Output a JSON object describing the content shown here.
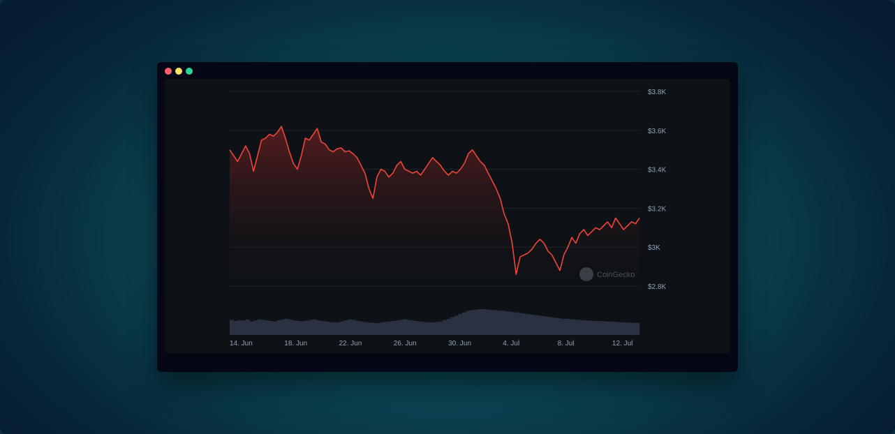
{
  "window": {
    "controls": [
      "close",
      "minimize",
      "maximize"
    ]
  },
  "chart_data": {
    "type": "area",
    "series": [
      {
        "values": [
          3500,
          3470,
          3440,
          3480,
          3520,
          3480,
          3390,
          3470,
          3550,
          3560,
          3580,
          3570,
          3590,
          3620,
          3560,
          3490,
          3430,
          3400,
          3470,
          3560,
          3550,
          3580,
          3610,
          3540,
          3530,
          3500,
          3490,
          3505,
          3510,
          3490,
          3495,
          3480,
          3460,
          3420,
          3380,
          3300,
          3250,
          3360,
          3400,
          3390,
          3360,
          3380,
          3420,
          3440,
          3400,
          3390,
          3380,
          3390,
          3370,
          3400,
          3430,
          3460,
          3440,
          3420,
          3390,
          3370,
          3390,
          3380,
          3400,
          3430,
          3480,
          3500,
          3470,
          3440,
          3420,
          3380,
          3340,
          3300,
          3250,
          3170,
          3120,
          3020,
          2860,
          2950,
          2960,
          2970,
          2990,
          3020,
          3040,
          3020,
          2980,
          2960,
          2920,
          2880,
          2960,
          3000,
          3050,
          3020,
          3070,
          3090,
          3060,
          3080,
          3100,
          3090,
          3110,
          3130,
          3100,
          3150,
          3120,
          3090,
          3110,
          3130,
          3120,
          3150
        ],
        "x_start": "2024-06-14",
        "x_end": "2024-07-14"
      }
    ],
    "volume": [
      56,
      52,
      55,
      53,
      57,
      50,
      54,
      58,
      56,
      54,
      52,
      50,
      55,
      58,
      60,
      57,
      54,
      52,
      50,
      53,
      56,
      58,
      54,
      52,
      50,
      48,
      47,
      46,
      50,
      54,
      58,
      56,
      52,
      50,
      48,
      46,
      45,
      44,
      46,
      48,
      50,
      52,
      54,
      56,
      58,
      56,
      54,
      52,
      50,
      48,
      47,
      46,
      48,
      50,
      55,
      60,
      66,
      72,
      78,
      84,
      90,
      92,
      94,
      96,
      96,
      95,
      93,
      92,
      90,
      90,
      88,
      86,
      84,
      82,
      80,
      78,
      76,
      74,
      72,
      70,
      68,
      66,
      64,
      62,
      60,
      60,
      58,
      57,
      56,
      55,
      54,
      53,
      52,
      52,
      51,
      50,
      50,
      49,
      48,
      47,
      46,
      46,
      45,
      45
    ],
    "x_ticks": [
      "14. Jun",
      "18. Jun",
      "22. Jun",
      "26. Jun",
      "30. Jun",
      "4. Jul",
      "8. Jul",
      "12. Jul"
    ],
    "y_ticks": [
      {
        "value": 3800,
        "label": "$3.8K"
      },
      {
        "value": 3600,
        "label": "$3.6K"
      },
      {
        "value": 3400,
        "label": "$3.4K"
      },
      {
        "value": 3200,
        "label": "$3.2K"
      },
      {
        "value": 3000,
        "label": "$3K"
      },
      {
        "value": 2800,
        "label": "$2.8K"
      }
    ],
    "ylim": [
      2800,
      3800
    ],
    "grid": true,
    "watermark": "CoinGecko",
    "colors": {
      "line": "#f0453a",
      "fill_top": "#5a1d1f",
      "grid": "#1f252c",
      "tick_text": "#8fa0b3",
      "volume": "#2a3140"
    }
  }
}
